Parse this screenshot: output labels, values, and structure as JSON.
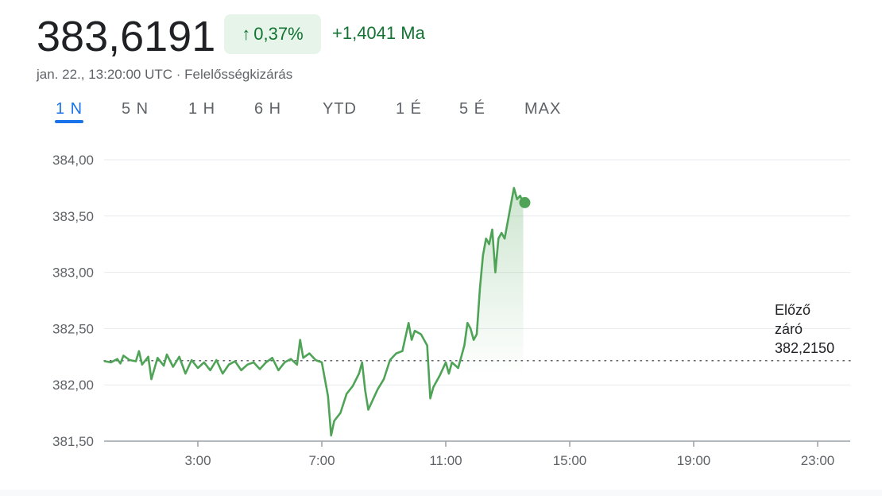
{
  "header": {
    "price": "383,6191",
    "change_arrow": "↑",
    "change_percent": "0,37%",
    "change_abs": "+1,4041 Ma",
    "timestamp": "jan. 22., 13:20:00 UTC",
    "separator": " · ",
    "disclaimer": "Felelősségkizárás"
  },
  "tabs": [
    {
      "label": "1 N",
      "active": true
    },
    {
      "label": "5 N",
      "active": false
    },
    {
      "label": "1 H",
      "active": false
    },
    {
      "label": "6 H",
      "active": false
    },
    {
      "label": "YTD",
      "active": false
    },
    {
      "label": "1 É",
      "active": false
    },
    {
      "label": "5 É",
      "active": false
    },
    {
      "label": "MAX",
      "active": false
    }
  ],
  "colors": {
    "line": "#4fa357",
    "positive": "#137333",
    "badge_bg": "#e6f4ea",
    "active_tab": "#1a73e8",
    "grid": "#e8eaed"
  },
  "chart_data": {
    "type": "line",
    "x_unit": "hours",
    "ylim": [
      381.5,
      384.0
    ],
    "xlim": [
      0,
      24
    ],
    "yticks": [
      {
        "value": 384.0,
        "label": "384,00"
      },
      {
        "value": 383.5,
        "label": "383,50"
      },
      {
        "value": 383.0,
        "label": "383,00"
      },
      {
        "value": 382.5,
        "label": "382,50"
      },
      {
        "value": 382.0,
        "label": "382,00"
      },
      {
        "value": 381.5,
        "label": "381,50"
      }
    ],
    "xticks": [
      {
        "value": 3,
        "label": "3:00"
      },
      {
        "value": 7,
        "label": "7:00"
      },
      {
        "value": 11,
        "label": "11:00"
      },
      {
        "value": 15,
        "label": "15:00"
      },
      {
        "value": 19,
        "label": "19:00"
      },
      {
        "value": 23,
        "label": "23:00"
      }
    ],
    "previous_close": {
      "value": 382.215,
      "label_lines": [
        "Előző",
        "záró",
        "382,2150"
      ]
    },
    "grid": true,
    "series": [
      {
        "points": [
          [
            0.0,
            382.21
          ],
          [
            0.2,
            382.2
          ],
          [
            0.4,
            382.23
          ],
          [
            0.5,
            382.19
          ],
          [
            0.6,
            382.26
          ],
          [
            0.8,
            382.22
          ],
          [
            1.0,
            382.21
          ],
          [
            1.1,
            382.3
          ],
          [
            1.2,
            382.18
          ],
          [
            1.4,
            382.25
          ],
          [
            1.5,
            382.05
          ],
          [
            1.7,
            382.24
          ],
          [
            1.9,
            382.17
          ],
          [
            2.0,
            382.27
          ],
          [
            2.2,
            382.16
          ],
          [
            2.4,
            382.25
          ],
          [
            2.6,
            382.1
          ],
          [
            2.8,
            382.22
          ],
          [
            3.0,
            382.15
          ],
          [
            3.2,
            382.2
          ],
          [
            3.4,
            382.13
          ],
          [
            3.6,
            382.22
          ],
          [
            3.8,
            382.1
          ],
          [
            4.0,
            382.18
          ],
          [
            4.2,
            382.21
          ],
          [
            4.4,
            382.13
          ],
          [
            4.6,
            382.18
          ],
          [
            4.8,
            382.2
          ],
          [
            5.0,
            382.14
          ],
          [
            5.2,
            382.2
          ],
          [
            5.4,
            382.24
          ],
          [
            5.6,
            382.13
          ],
          [
            5.8,
            382.2
          ],
          [
            6.0,
            382.23
          ],
          [
            6.2,
            382.18
          ],
          [
            6.3,
            382.4
          ],
          [
            6.4,
            382.24
          ],
          [
            6.6,
            382.28
          ],
          [
            6.8,
            382.22
          ],
          [
            7.0,
            382.2
          ],
          [
            7.1,
            382.05
          ],
          [
            7.2,
            381.9
          ],
          [
            7.3,
            381.55
          ],
          [
            7.4,
            381.68
          ],
          [
            7.6,
            381.75
          ],
          [
            7.8,
            381.92
          ],
          [
            8.0,
            381.99
          ],
          [
            8.2,
            382.1
          ],
          [
            8.3,
            382.2
          ],
          [
            8.4,
            381.95
          ],
          [
            8.5,
            381.78
          ],
          [
            8.6,
            381.84
          ],
          [
            8.8,
            381.96
          ],
          [
            9.0,
            382.05
          ],
          [
            9.2,
            382.22
          ],
          [
            9.4,
            382.28
          ],
          [
            9.6,
            382.3
          ],
          [
            9.8,
            382.55
          ],
          [
            9.9,
            382.4
          ],
          [
            10.0,
            382.48
          ],
          [
            10.2,
            382.45
          ],
          [
            10.4,
            382.35
          ],
          [
            10.5,
            381.88
          ],
          [
            10.6,
            381.98
          ],
          [
            10.8,
            382.08
          ],
          [
            11.0,
            382.2
          ],
          [
            11.1,
            382.1
          ],
          [
            11.2,
            382.2
          ],
          [
            11.4,
            382.15
          ],
          [
            11.5,
            382.25
          ],
          [
            11.6,
            382.35
          ],
          [
            11.7,
            382.55
          ],
          [
            11.8,
            382.5
          ],
          [
            11.9,
            382.4
          ],
          [
            12.0,
            382.45
          ],
          [
            12.1,
            382.85
          ],
          [
            12.2,
            383.15
          ],
          [
            12.3,
            383.3
          ],
          [
            12.4,
            383.25
          ],
          [
            12.5,
            383.38
          ],
          [
            12.6,
            383.0
          ],
          [
            12.7,
            383.3
          ],
          [
            12.8,
            383.35
          ],
          [
            12.9,
            383.3
          ],
          [
            13.0,
            383.45
          ],
          [
            13.1,
            383.6
          ],
          [
            13.2,
            383.75
          ],
          [
            13.3,
            383.65
          ],
          [
            13.4,
            383.68
          ],
          [
            13.5,
            383.62
          ]
        ]
      }
    ],
    "last_point": {
      "x": 13.55,
      "y": 383.6191
    }
  }
}
